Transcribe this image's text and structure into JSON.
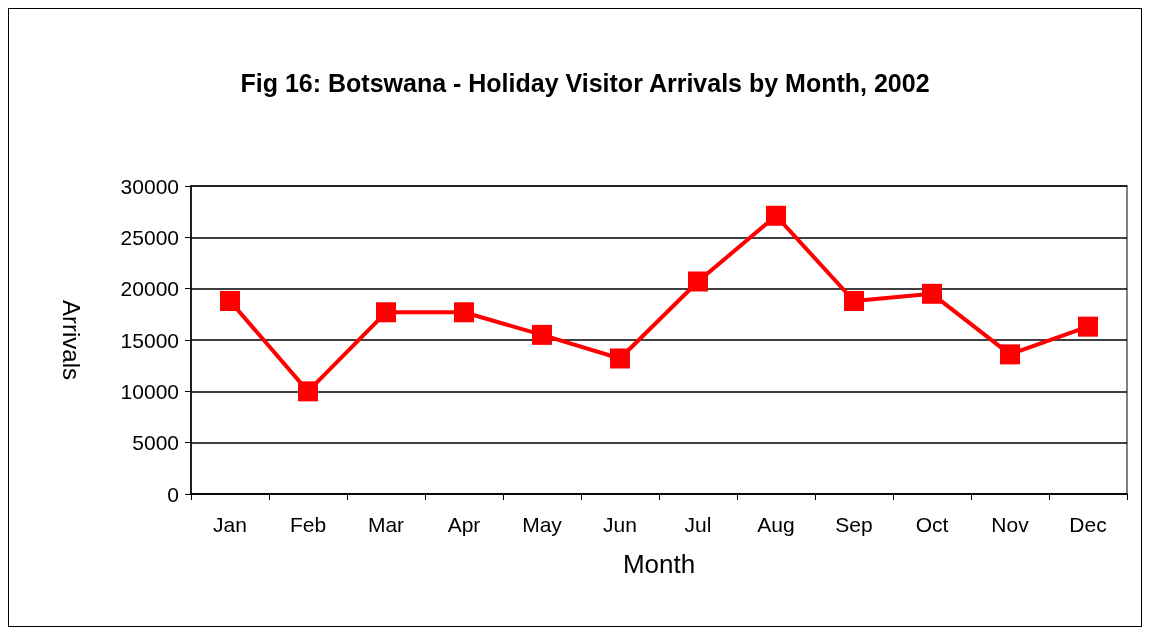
{
  "chart_data": {
    "type": "line",
    "title": "Fig 16: Botswana -  Holiday Visitor Arrivals by Month, 2002",
    "xlabel": "Month",
    "ylabel": "Arrivals",
    "categories": [
      "Jan",
      "Feb",
      "Mar",
      "Apr",
      "May",
      "Jun",
      "Jul",
      "Aug",
      "Sep",
      "Oct",
      "Nov",
      "Dec"
    ],
    "series": [
      {
        "color": "#ff0000",
        "values": [
          18800,
          10000,
          17700,
          17700,
          15500,
          13200,
          20700,
          27100,
          18800,
          19500,
          13600,
          16300
        ]
      }
    ],
    "ylim": [
      0,
      30000
    ],
    "yticks": [
      0,
      5000,
      10000,
      15000,
      20000,
      25000,
      30000
    ],
    "grid": "y",
    "marker": "square",
    "line_style": "solid"
  }
}
